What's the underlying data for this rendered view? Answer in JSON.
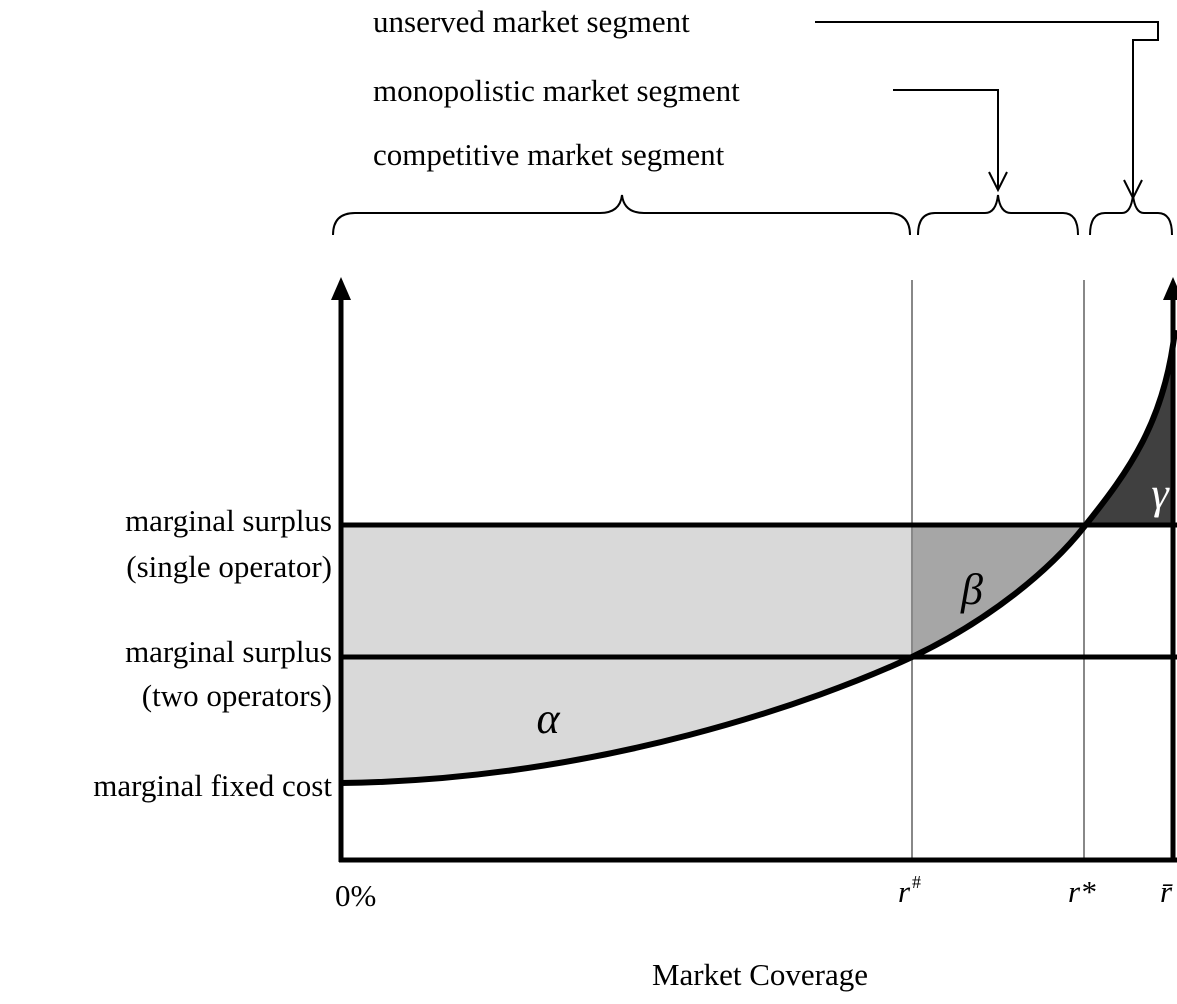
{
  "segments": {
    "unserved": "unserved market segment",
    "monopolistic": "monopolistic market segment",
    "competitive": "competitive market segment"
  },
  "y_labels": {
    "single": [
      "marginal surplus",
      "(single operator)"
    ],
    "two": [
      "marginal surplus",
      "(two operators)"
    ],
    "fixed": "marginal fixed cost"
  },
  "x_labels": {
    "origin": "0%",
    "r_hash": "r",
    "r_hash_sup": "#",
    "r_star": "r*",
    "r_bar": "r̄"
  },
  "x_axis_title": "Market Coverage",
  "regions": {
    "alpha": "α",
    "beta": "β",
    "gamma": "γ"
  }
}
